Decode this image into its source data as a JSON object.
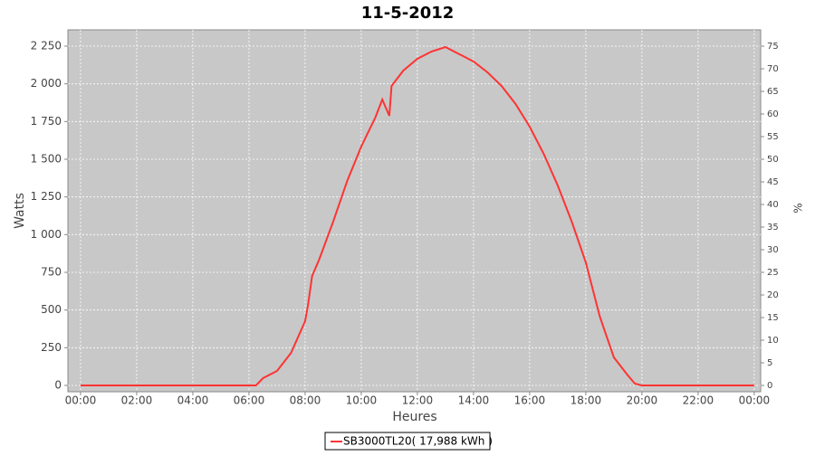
{
  "chart_data": {
    "type": "line",
    "title": "11-5-2012",
    "x_label": "Heures",
    "y_label": "Watts",
    "y2_label": "%",
    "x": [
      0,
      6,
      6.25,
      6.5,
      7,
      7.25,
      7.5,
      8,
      8.1,
      8.25,
      8.5,
      9,
      9.5,
      10,
      10.5,
      10.75,
      11,
      11.08,
      11.5,
      12,
      12.5,
      13,
      13.5,
      14,
      14.5,
      15,
      15.5,
      16,
      16.5,
      17,
      17.5,
      18,
      18.5,
      19,
      19.5,
      19.75,
      20,
      24
    ],
    "series": [
      {
        "name": "SB3000TL20( 17,988 kWh )",
        "color": "#ff3333",
        "values": [
          0,
          0,
          0,
          48,
          96,
          156,
          216,
          426,
          528,
          726,
          834,
          1086,
          1356,
          1584,
          1776,
          1896,
          1788,
          1986,
          2088,
          2166,
          2214,
          2244,
          2196,
          2148,
          2076,
          1986,
          1866,
          1716,
          1536,
          1326,
          1086,
          816,
          456,
          186,
          66,
          12,
          0,
          0
        ]
      }
    ],
    "xlim": [
      -0.45,
      24.23
    ],
    "xticks": [
      {
        "value": 0,
        "label": "00:00"
      },
      {
        "value": 2,
        "label": "02:00"
      },
      {
        "value": 4,
        "label": "04:00"
      },
      {
        "value": 6,
        "label": "06:00"
      },
      {
        "value": 8,
        "label": "08:00"
      },
      {
        "value": 10,
        "label": "10:00"
      },
      {
        "value": 12,
        "label": "12:00"
      },
      {
        "value": 14,
        "label": "14:00"
      },
      {
        "value": 16,
        "label": "16:00"
      },
      {
        "value": 18,
        "label": "18:00"
      },
      {
        "value": 20,
        "label": "20:00"
      },
      {
        "value": 22,
        "label": "22:00"
      },
      {
        "value": 24,
        "label": "00:00"
      }
    ],
    "ylim": [
      -42,
      2358
    ],
    "yticks": [
      0,
      250,
      500,
      750,
      {
        "value": 1000,
        "label": "1 000"
      },
      {
        "value": 1250,
        "label": "1 250"
      },
      {
        "value": 1500,
        "label": "1 500"
      },
      {
        "value": 1750,
        "label": "1 750"
      },
      {
        "value": 2000,
        "label": "2 000"
      },
      {
        "value": 2250,
        "label": "2 250"
      }
    ],
    "y2lim": [
      -1.4,
      78.6
    ],
    "y2ticks": [
      0,
      5,
      10,
      15,
      20,
      25,
      30,
      35,
      40,
      45,
      50,
      55,
      60,
      65,
      70,
      75
    ],
    "grid": true
  }
}
